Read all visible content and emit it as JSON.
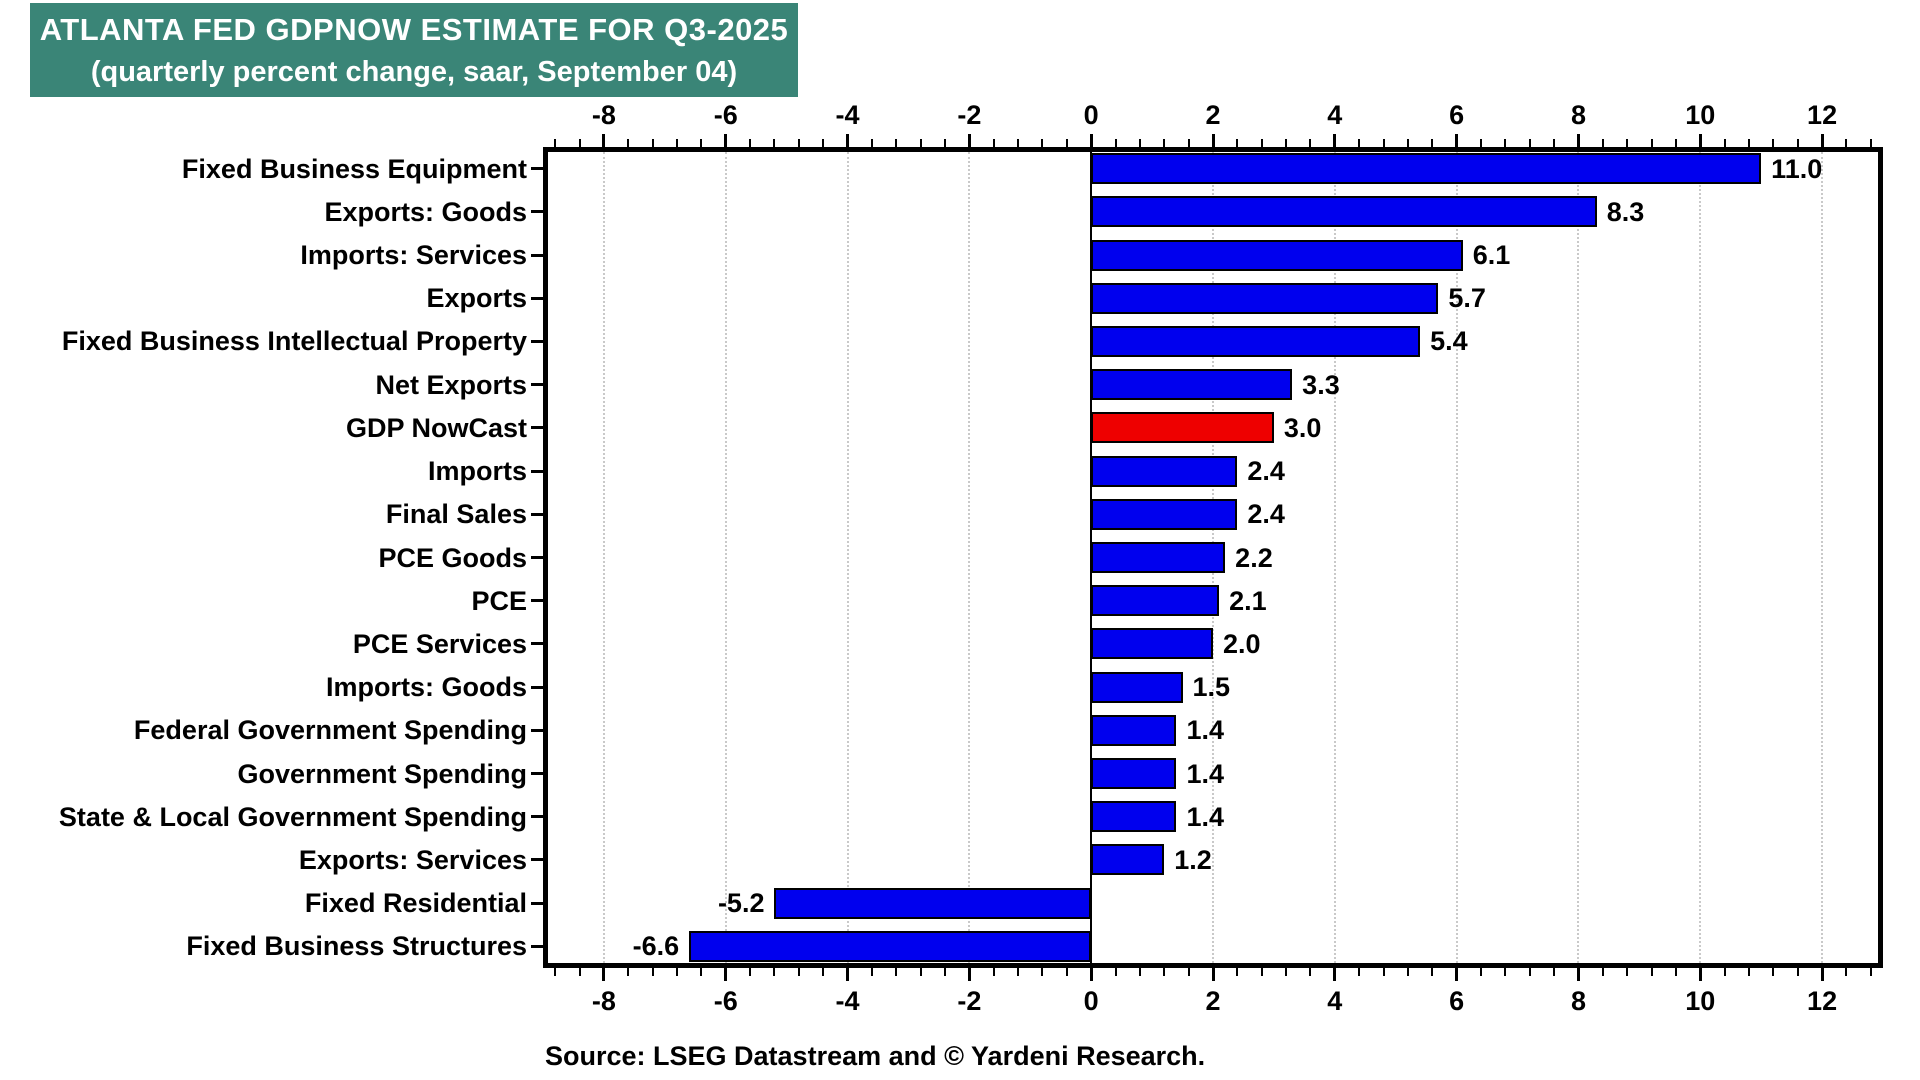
{
  "banner": {
    "title": "ATLANTA FED GDPNOW ESTIMATE FOR Q3-2025",
    "subtitle": "(quarterly percent change, saar, September 04)",
    "bg_color": "#3A8577",
    "text_color": "#FFFFFF"
  },
  "source_note": "Source: LSEG Datastream and © Yardeni Research.",
  "chart_data": {
    "type": "bar",
    "orientation": "horizontal",
    "title": "ATLANTA FED GDPNOW ESTIMATE FOR Q3-2025",
    "subtitle": "(quarterly percent change, saar, September 04)",
    "categories": [
      "Fixed Business Equipment",
      "Exports: Goods",
      "Imports: Services",
      "Exports",
      "Fixed Business Intellectual Property",
      "Net Exports",
      "GDP NowCast",
      "Imports",
      "Final Sales",
      "PCE Goods",
      "PCE",
      "PCE Services",
      "Imports: Goods",
      "Federal Government Spending",
      "Government Spending",
      "State & Local Government Spending",
      "Exports: Services",
      "Fixed Residential",
      "Fixed Business Structures"
    ],
    "values": [
      11.0,
      8.3,
      6.1,
      5.7,
      5.4,
      3.3,
      3.0,
      2.4,
      2.4,
      2.2,
      2.1,
      2.0,
      1.5,
      1.4,
      1.4,
      1.4,
      1.2,
      -5.2,
      -6.6
    ],
    "highlight_index": 6,
    "highlight_category": "GDP NowCast",
    "bar_color": "#0000EE",
    "highlight_color": "#EE0000",
    "bar_border_color": "#000000",
    "xlim": [
      -9,
      13
    ],
    "x_major_ticks": [
      -8,
      -6,
      -4,
      -2,
      0,
      2,
      4,
      6,
      8,
      10,
      12
    ],
    "x_minor_step": 0.4,
    "grid": "dotted vertical gridlines at major ticks",
    "grid_color": "#C9C9C9",
    "legend": "none",
    "value_label_decimals": 1
  }
}
